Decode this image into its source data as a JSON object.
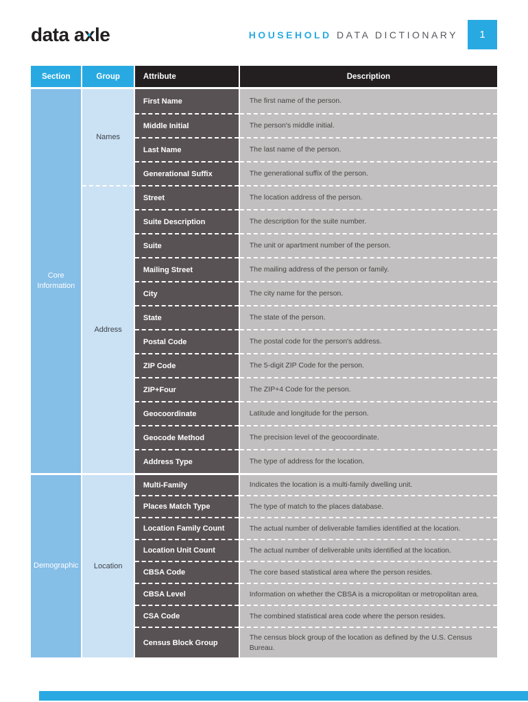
{
  "header": {
    "logo": {
      "part1": "data a",
      "x": "x",
      "part2": "le"
    },
    "title_highlight": "HOUSEHOLD",
    "title_rest": " DATA DICTIONARY",
    "page_number": "1"
  },
  "colors": {
    "accent_blue": "#29a9e1",
    "header_black": "#231f20",
    "section_blue": "#85bee7",
    "group_blue": "#cbe1f4",
    "attribute_gray": "#595254",
    "description_gray": "#c1bfbf"
  },
  "table": {
    "columns": [
      "Section",
      "Group",
      "Attribute",
      "Description"
    ],
    "sections": [
      {
        "name": "Core Information",
        "groups": [
          {
            "name": "Names",
            "rows": [
              {
                "attribute": "First Name",
                "description": "The first name of the person."
              },
              {
                "attribute": "Middle Initial",
                "description": "The person's middle initial."
              },
              {
                "attribute": "Last Name",
                "description": "The last name of the person."
              },
              {
                "attribute": "Generational Suffix",
                "description": "The generational suffix of the person."
              }
            ]
          },
          {
            "name": "Address",
            "rows": [
              {
                "attribute": "Street",
                "description": "The location address of the person."
              },
              {
                "attribute": "Suite Description",
                "description": "The description for the suite number."
              },
              {
                "attribute": "Suite",
                "description": "The unit or apartment number of the person."
              },
              {
                "attribute": "Mailing Street",
                "description": "The mailing address of the person or family."
              },
              {
                "attribute": "City",
                "description": "The city name for the person."
              },
              {
                "attribute": "State",
                "description": "The state of the person."
              },
              {
                "attribute": "Postal Code",
                "description": "The postal code for the person's address."
              },
              {
                "attribute": "ZIP Code",
                "description": "The 5-digit ZIP Code for the person."
              },
              {
                "attribute": "ZIP+Four",
                "description": "The ZIP+4 Code for the person."
              },
              {
                "attribute": "Geocoordinate",
                "description": "Latitude and longitude for the person."
              },
              {
                "attribute": "Geocode Method",
                "description": "The precision level of the geocoordinate."
              },
              {
                "attribute": "Address Type",
                "description": "The type of address for the location."
              }
            ]
          }
        ]
      },
      {
        "name": "Demographic",
        "groups": [
          {
            "name": "Location",
            "rows": [
              {
                "attribute": "Multi-Family",
                "description": "Indicates the location is a multi-family dwelling unit."
              },
              {
                "attribute": "Places Match Type",
                "description": "The type of match to the places database."
              },
              {
                "attribute": "Location Family Count",
                "description": "The actual number of deliverable families identified at the location."
              },
              {
                "attribute": "Location Unit Count",
                "description": "The actual number of deliverable units identified at the location."
              },
              {
                "attribute": "CBSA Code",
                "description": "The core based statistical area where the person resides."
              },
              {
                "attribute": "CBSA Level",
                "description": "Information on whether the CBSA is a micropolitan or metropolitan area."
              },
              {
                "attribute": "CSA Code",
                "description": "The combined statistical area code where the person resides."
              },
              {
                "attribute": "Census Block Group",
                "description": "The census block group of the location as defined by the U.S. Census Bureau."
              }
            ]
          }
        ]
      }
    ]
  }
}
